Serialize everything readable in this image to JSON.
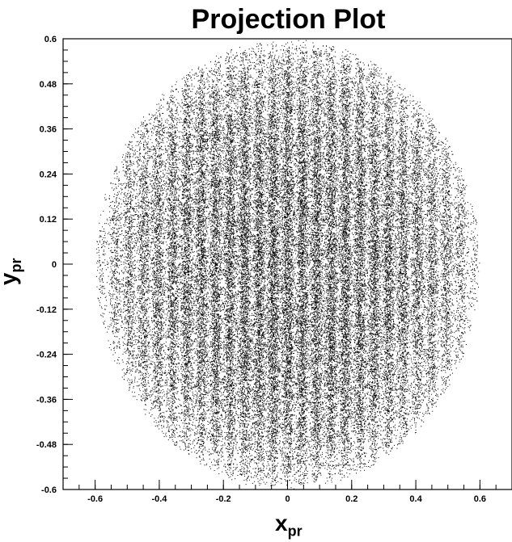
{
  "chart_data": {
    "type": "scatter",
    "title": "Projection Plot",
    "xlabel": {
      "main": "x",
      "sub": "pr"
    },
    "ylabel": {
      "main": "y",
      "sub": "pr"
    },
    "xlim": [
      -0.7,
      0.7
    ],
    "ylim": [
      -0.6,
      0.6
    ],
    "x_ticks": [
      -0.6,
      -0.4,
      -0.2,
      0,
      0.2,
      0.4,
      0.6
    ],
    "x_tick_labels": [
      "-0.6",
      "-0.4",
      "-0.2",
      "0",
      "0.2",
      "0.4",
      "0.6"
    ],
    "y_ticks": [
      -0.6,
      -0.48,
      -0.36,
      -0.24,
      -0.12,
      0,
      0.12,
      0.24,
      0.36,
      0.48,
      0.6
    ],
    "y_tick_labels": [
      "-0.6",
      "-0.48",
      "-0.36",
      "-0.24",
      "-0.12",
      "0",
      "0.12",
      "0.24",
      "0.36",
      "0.48",
      "0.6"
    ],
    "grid": false,
    "legend": "none",
    "point_color": "#000000",
    "distribution": {
      "shape": "disc",
      "center": [
        0,
        0
      ],
      "radius": 0.6,
      "density": "highest near center, fading toward edge",
      "pattern": "faint vertical striations"
    }
  }
}
